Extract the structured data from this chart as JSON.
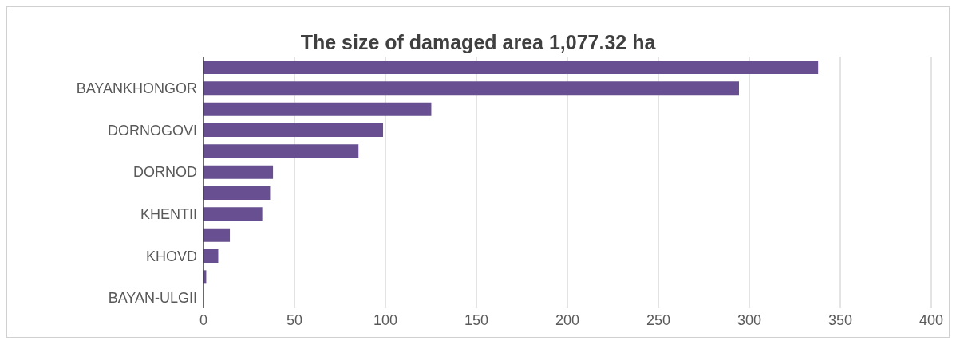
{
  "chart_data": {
    "type": "bar",
    "orientation": "horizontal",
    "title": "The size of damaged area 1,077.32 ha",
    "categories": [
      null,
      "BAYANKHONGOR",
      null,
      "DORNOGOVI",
      null,
      "DORNOD",
      null,
      "KHENTII",
      null,
      "KHOVD",
      null,
      "BAYAN-ULGII"
    ],
    "values": [
      337.8,
      294.3,
      125.2,
      98.7,
      85.2,
      38.2,
      36.6,
      32.3,
      14.5,
      8.1,
      1.5,
      null
    ],
    "color": "#674f91",
    "xlim": [
      0,
      400
    ],
    "xticks": [
      0,
      50,
      100,
      150,
      200,
      250,
      300,
      350,
      400
    ],
    "grid": "x"
  }
}
